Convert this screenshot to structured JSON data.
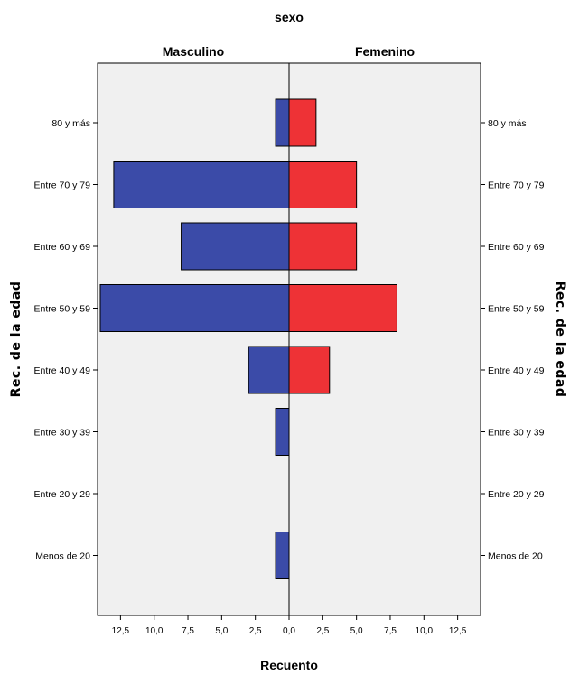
{
  "chart_data": {
    "type": "bar",
    "title": "sexo",
    "xlabel": "Recuento",
    "ylabel": "Rec. de la edad",
    "categories": [
      "80 y más",
      "Entre 70 y 79",
      "Entre 60 y 69",
      "Entre 50 y 59",
      "Entre 40 y 49",
      "Entre 30 y 39",
      "Entre 20 y 29",
      "Menos de 20"
    ],
    "series": [
      {
        "name": "Masculino",
        "color": "#3b4ba8",
        "values": [
          1,
          13,
          8,
          14,
          3,
          1,
          0,
          1
        ]
      },
      {
        "name": "Femenino",
        "color": "#ee3236",
        "values": [
          2,
          5,
          5,
          8,
          3,
          0,
          0,
          0
        ]
      }
    ],
    "xlim": [
      -14.2,
      14.2
    ],
    "xticks": [
      {
        "value": -12.5,
        "label": "12,5"
      },
      {
        "value": -10,
        "label": "10,0"
      },
      {
        "value": -7.5,
        "label": "7,5"
      },
      {
        "value": -5,
        "label": "5,0"
      },
      {
        "value": -2.5,
        "label": "2,5"
      },
      {
        "value": 0,
        "label": "0,0"
      },
      {
        "value": 2.5,
        "label": "2,5"
      },
      {
        "value": 5,
        "label": "5,0"
      },
      {
        "value": 7.5,
        "label": "7,5"
      },
      {
        "value": 10,
        "label": "10,0"
      },
      {
        "value": 12.5,
        "label": "12,5"
      }
    ],
    "grid": false,
    "legend": "none",
    "orientation": "horizontal-population-pyramid"
  }
}
